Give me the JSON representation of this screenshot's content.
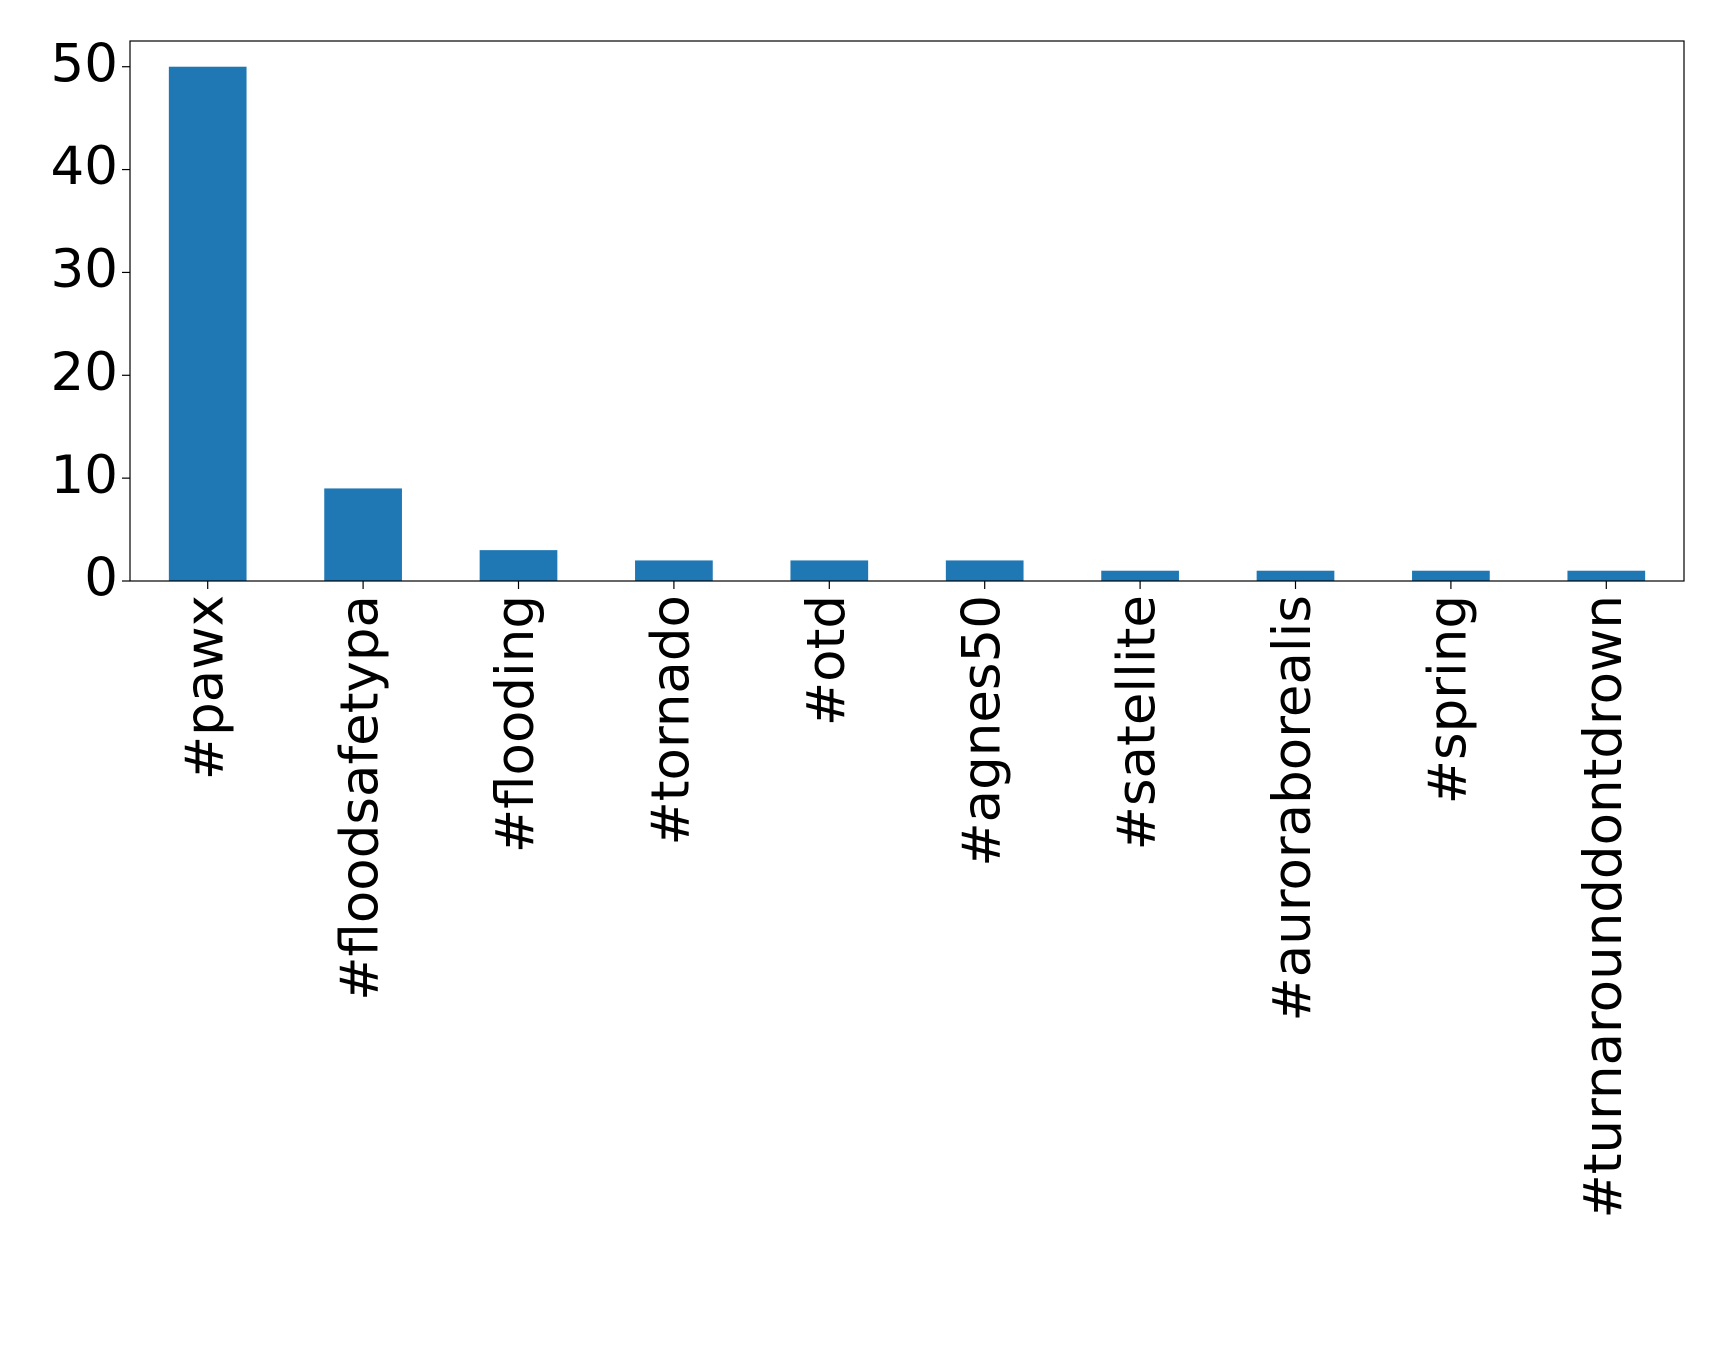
{
  "chart_data": {
    "type": "bar",
    "categories": [
      "#pawx",
      "#floodsafetypa",
      "#flooding",
      "#tornado",
      "#otd",
      "#agnes50",
      "#satellite",
      "#auroraborealis",
      "#spring",
      "#turnarounddontdrown"
    ],
    "values": [
      50,
      9,
      3,
      2,
      2,
      2,
      1,
      1,
      1,
      1
    ],
    "color": "#1f77b4",
    "ylim": [
      0,
      52.5
    ],
    "yticks": [
      0,
      10,
      20,
      30,
      40,
      50
    ],
    "grid": false
  }
}
